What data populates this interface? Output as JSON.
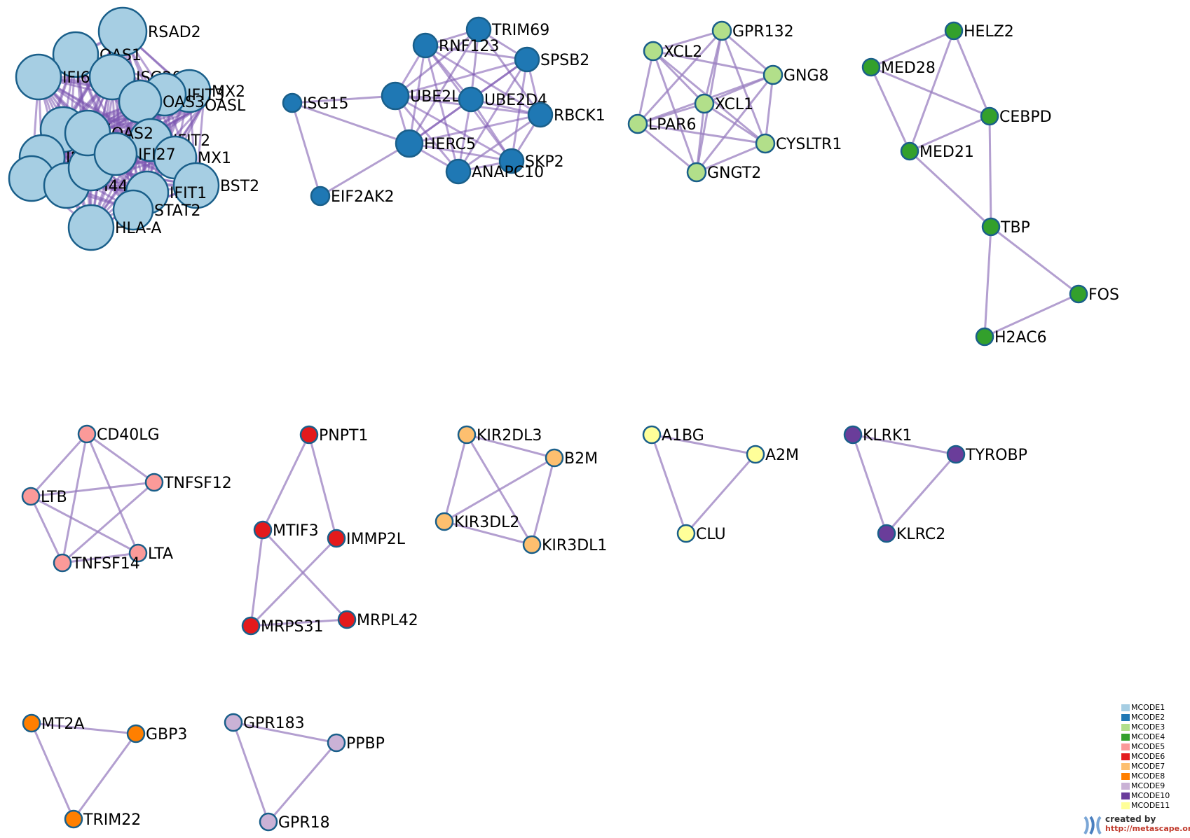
{
  "diagram": {
    "edge_color": "#9a7fc0",
    "node_stroke": "#1a5f8a",
    "modules": [
      {
        "name": "MCODE1",
        "color": "#a6cee3"
      },
      {
        "name": "MCODE2",
        "color": "#1f78b4"
      },
      {
        "name": "MCODE3",
        "color": "#b2df8a"
      },
      {
        "name": "MCODE4",
        "color": "#33a02c"
      },
      {
        "name": "MCODE5",
        "color": "#fb9a99"
      },
      {
        "name": "MCODE6",
        "color": "#e31a1c"
      },
      {
        "name": "MCODE7",
        "color": "#fdbf6f"
      },
      {
        "name": "MCODE8",
        "color": "#ff7f00"
      },
      {
        "name": "MCODE9",
        "color": "#cab2d6"
      },
      {
        "name": "MCODE10",
        "color": "#6a3d9a"
      },
      {
        "name": "MCODE11",
        "color": "#ffff99"
      }
    ],
    "nodes": [
      {
        "id": "RSAD2",
        "module": "MCODE1"
      },
      {
        "id": "OAS1",
        "module": "MCODE1"
      },
      {
        "id": "ISG20",
        "module": "MCODE1"
      },
      {
        "id": "MX2",
        "module": "MCODE1"
      },
      {
        "id": "OASL",
        "module": "MCODE1"
      },
      {
        "id": "IFI6",
        "module": "MCODE1"
      },
      {
        "id": "IFIT3",
        "module": "MCODE1"
      },
      {
        "id": "OAS3",
        "module": "MCODE1"
      },
      {
        "id": "IRF",
        "module": "MCODE1"
      },
      {
        "id": "IFIT2",
        "module": "MCODE1"
      },
      {
        "id": "MX1",
        "module": "MCODE1"
      },
      {
        "id": "IRF7",
        "module": "MCODE1"
      },
      {
        "id": "IFI35",
        "module": "MCODE1"
      },
      {
        "id": "IFI44",
        "module": "MCODE1"
      },
      {
        "id": "BST2",
        "module": "MCODE1"
      },
      {
        "id": "IFIT1",
        "module": "MCODE1"
      },
      {
        "id": "ISG15b",
        "label": "",
        "module": "MCODE1"
      },
      {
        "id": "STAT2",
        "module": "MCODE1"
      },
      {
        "id": "HLA-A",
        "module": "MCODE1"
      },
      {
        "id": "OAS2",
        "module": "MCODE1"
      },
      {
        "id": "IFI27",
        "module": "MCODE1"
      },
      {
        "id": "ISG15",
        "module": "MCODE2"
      },
      {
        "id": "EIF2AK2",
        "module": "MCODE2"
      },
      {
        "id": "TRIM69",
        "module": "MCODE2"
      },
      {
        "id": "RNF123",
        "module": "MCODE2"
      },
      {
        "id": "SPSB2",
        "module": "MCODE2"
      },
      {
        "id": "UBE2L6",
        "module": "MCODE2"
      },
      {
        "id": "UBE2D4",
        "module": "MCODE2"
      },
      {
        "id": "RBCK1",
        "module": "MCODE2"
      },
      {
        "id": "HERC5",
        "module": "MCODE2"
      },
      {
        "id": "SKP2",
        "module": "MCODE2"
      },
      {
        "id": "ANAPC10",
        "module": "MCODE2"
      },
      {
        "id": "GPR132",
        "module": "MCODE3"
      },
      {
        "id": "XCL2",
        "module": "MCODE3"
      },
      {
        "id": "GNG8",
        "module": "MCODE3"
      },
      {
        "id": "XCL1",
        "module": "MCODE3"
      },
      {
        "id": "LPAR6",
        "module": "MCODE3"
      },
      {
        "id": "CYSLTR1",
        "module": "MCODE3"
      },
      {
        "id": "GNGT2",
        "module": "MCODE3"
      },
      {
        "id": "HELZ2",
        "module": "MCODE4"
      },
      {
        "id": "MED28",
        "module": "MCODE4"
      },
      {
        "id": "CEBPD",
        "module": "MCODE4"
      },
      {
        "id": "MED21",
        "module": "MCODE4"
      },
      {
        "id": "TBP",
        "module": "MCODE4"
      },
      {
        "id": "FOS",
        "module": "MCODE4"
      },
      {
        "id": "H2AC6",
        "module": "MCODE4"
      },
      {
        "id": "CD40LG",
        "module": "MCODE5"
      },
      {
        "id": "TNFSF12",
        "module": "MCODE5"
      },
      {
        "id": "LTB",
        "module": "MCODE5"
      },
      {
        "id": "LTA",
        "module": "MCODE5"
      },
      {
        "id": "TNFSF14",
        "module": "MCODE5"
      },
      {
        "id": "PNPT1",
        "module": "MCODE6"
      },
      {
        "id": "MTIF3",
        "module": "MCODE6"
      },
      {
        "id": "IMMP2L",
        "module": "MCODE6"
      },
      {
        "id": "MRPL42",
        "module": "MCODE6"
      },
      {
        "id": "MRPS31",
        "module": "MCODE6"
      },
      {
        "id": "KIR2DL3",
        "module": "MCODE7"
      },
      {
        "id": "B2M",
        "module": "MCODE7"
      },
      {
        "id": "KIR3DL2",
        "module": "MCODE7"
      },
      {
        "id": "KIR3DL1",
        "module": "MCODE7"
      },
      {
        "id": "MT2A",
        "module": "MCODE8"
      },
      {
        "id": "GBP3",
        "module": "MCODE8"
      },
      {
        "id": "TRIM22",
        "module": "MCODE8"
      },
      {
        "id": "GPR183",
        "module": "MCODE9"
      },
      {
        "id": "PPBP",
        "module": "MCODE9"
      },
      {
        "id": "GPR18",
        "module": "MCODE9"
      },
      {
        "id": "KLRK1",
        "module": "MCODE10"
      },
      {
        "id": "TYROBP",
        "module": "MCODE10"
      },
      {
        "id": "KLRC2",
        "module": "MCODE10"
      },
      {
        "id": "A1BG",
        "module": "MCODE11"
      },
      {
        "id": "A2M",
        "module": "MCODE11"
      },
      {
        "id": "CLU",
        "module": "MCODE11"
      }
    ],
    "edges": [
      [
        "ISG15",
        "UBE2L6"
      ],
      [
        "ISG15",
        "HERC5"
      ],
      [
        "ISG15",
        "EIF2AK2"
      ],
      [
        "EIF2AK2",
        "HERC5"
      ],
      [
        "TRIM69",
        "RNF123"
      ],
      [
        "TRIM69",
        "SPSB2"
      ],
      [
        "TRIM69",
        "UBE2L6"
      ],
      [
        "TRIM69",
        "UBE2D4"
      ],
      [
        "TRIM69",
        "HERC5"
      ],
      [
        "TRIM69",
        "RBCK1"
      ],
      [
        "RNF123",
        "SPSB2"
      ],
      [
        "RNF123",
        "UBE2L6"
      ],
      [
        "RNF123",
        "UBE2D4"
      ],
      [
        "RNF123",
        "HERC5"
      ],
      [
        "RNF123",
        "RBCK1"
      ],
      [
        "RNF123",
        "SKP2"
      ],
      [
        "RNF123",
        "ANAPC10"
      ],
      [
        "SPSB2",
        "UBE2L6"
      ],
      [
        "SPSB2",
        "UBE2D4"
      ],
      [
        "SPSB2",
        "HERC5"
      ],
      [
        "SPSB2",
        "RBCK1"
      ],
      [
        "SPSB2",
        "SKP2"
      ],
      [
        "SPSB2",
        "ANAPC10"
      ],
      [
        "UBE2L6",
        "UBE2D4"
      ],
      [
        "UBE2L6",
        "HERC5"
      ],
      [
        "UBE2L6",
        "RBCK1"
      ],
      [
        "UBE2L6",
        "SKP2"
      ],
      [
        "UBE2L6",
        "ANAPC10"
      ],
      [
        "UBE2D4",
        "HERC5"
      ],
      [
        "UBE2D4",
        "RBCK1"
      ],
      [
        "UBE2D4",
        "SKP2"
      ],
      [
        "UBE2D4",
        "ANAPC10"
      ],
      [
        "HERC5",
        "SKP2"
      ],
      [
        "HERC5",
        "ANAPC10"
      ],
      [
        "HERC5",
        "RBCK1"
      ],
      [
        "RBCK1",
        "SKP2"
      ],
      [
        "RBCK1",
        "ANAPC10"
      ],
      [
        "SKP2",
        "ANAPC10"
      ],
      [
        "GPR132",
        "XCL2"
      ],
      [
        "GPR132",
        "GNG8"
      ],
      [
        "GPR132",
        "XCL1"
      ],
      [
        "GPR132",
        "LPAR6"
      ],
      [
        "GPR132",
        "CYSLTR1"
      ],
      [
        "GPR132",
        "GNGT2"
      ],
      [
        "XCL2",
        "GNG8"
      ],
      [
        "XCL2",
        "XCL1"
      ],
      [
        "XCL2",
        "LPAR6"
      ],
      [
        "XCL2",
        "CYSLTR1"
      ],
      [
        "XCL2",
        "GNGT2"
      ],
      [
        "GNG8",
        "XCL1"
      ],
      [
        "GNG8",
        "LPAR6"
      ],
      [
        "GNG8",
        "CYSLTR1"
      ],
      [
        "GNG8",
        "GNGT2"
      ],
      [
        "XCL1",
        "LPAR6"
      ],
      [
        "XCL1",
        "CYSLTR1"
      ],
      [
        "XCL1",
        "GNGT2"
      ],
      [
        "LPAR6",
        "CYSLTR1"
      ],
      [
        "LPAR6",
        "GNGT2"
      ],
      [
        "CYSLTR1",
        "GNGT2"
      ],
      [
        "HELZ2",
        "CEBPD"
      ],
      [
        "HELZ2",
        "MED21"
      ],
      [
        "HELZ2",
        "MED28"
      ],
      [
        "MED28",
        "CEBPD"
      ],
      [
        "MED28",
        "MED21"
      ],
      [
        "MED21",
        "CEBPD"
      ],
      [
        "MED21",
        "TBP"
      ],
      [
        "CEBPD",
        "TBP"
      ],
      [
        "TBP",
        "FOS"
      ],
      [
        "TBP",
        "H2AC6"
      ],
      [
        "FOS",
        "H2AC6"
      ],
      [
        "CD40LG",
        "TNFSF12"
      ],
      [
        "CD40LG",
        "LTB"
      ],
      [
        "CD40LG",
        "LTA"
      ],
      [
        "CD40LG",
        "TNFSF14"
      ],
      [
        "TNFSF12",
        "LTB"
      ],
      [
        "TNFSF12",
        "TNFSF14"
      ],
      [
        "LTB",
        "LTA"
      ],
      [
        "LTB",
        "TNFSF14"
      ],
      [
        "LTA",
        "TNFSF14"
      ],
      [
        "PNPT1",
        "MTIF3"
      ],
      [
        "PNPT1",
        "IMMP2L"
      ],
      [
        "MTIF3",
        "MRPS31"
      ],
      [
        "MTIF3",
        "MRPL42"
      ],
      [
        "IMMP2L",
        "MRPS31"
      ],
      [
        "MRPS31",
        "MRPL42"
      ],
      [
        "KIR2DL3",
        "B2M"
      ],
      [
        "KIR2DL3",
        "KIR3DL2"
      ],
      [
        "KIR2DL3",
        "KIR3DL1"
      ],
      [
        "B2M",
        "KIR3DL2"
      ],
      [
        "B2M",
        "KIR3DL1"
      ],
      [
        "KIR3DL2",
        "KIR3DL1"
      ],
      [
        "A1BG",
        "A2M"
      ],
      [
        "A1BG",
        "CLU"
      ],
      [
        "A2M",
        "CLU"
      ],
      [
        "KLRK1",
        "TYROBP"
      ],
      [
        "KLRK1",
        "KLRC2"
      ],
      [
        "TYROBP",
        "KLRC2"
      ],
      [
        "MT2A",
        "GBP3"
      ],
      [
        "MT2A",
        "TRIM22"
      ],
      [
        "GBP3",
        "TRIM22"
      ],
      [
        "GPR183",
        "PPBP"
      ],
      [
        "GPR183",
        "GPR18"
      ],
      [
        "PPBP",
        "GPR18"
      ]
    ]
  },
  "logo": {
    "created_by": "created by",
    "url": "http://metascape.org"
  }
}
